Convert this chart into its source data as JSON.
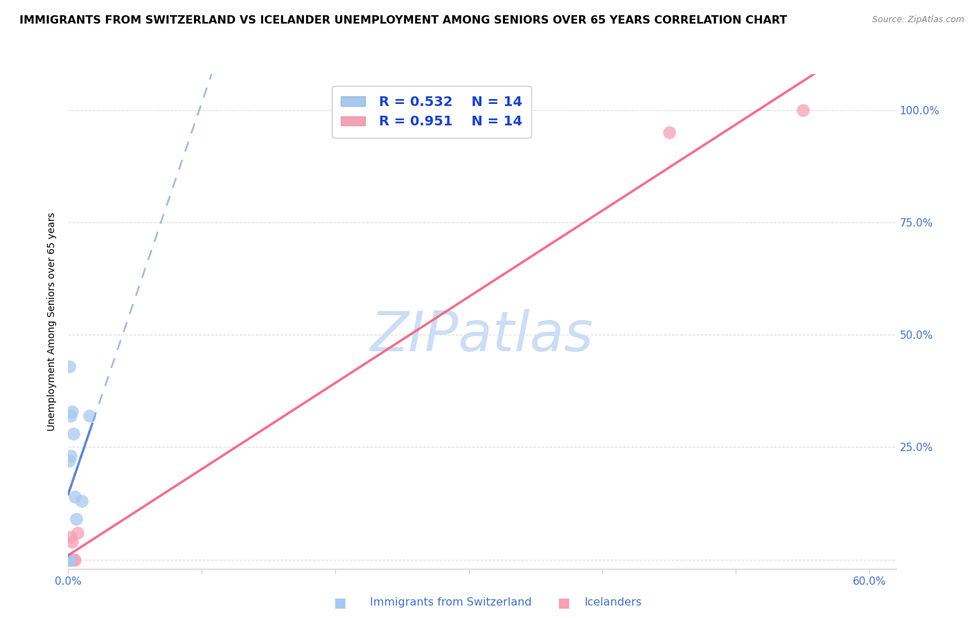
{
  "title": "IMMIGRANTS FROM SWITZERLAND VS ICELANDER UNEMPLOYMENT AMONG SENIORS OVER 65 YEARS CORRELATION CHART",
  "source": "Source: ZipAtlas.com",
  "ylabel_label": "Unemployment Among Seniors over 65 years",
  "legend_label_1": "Immigrants from Switzerland",
  "legend_label_2": "Icelanders",
  "r1": 0.532,
  "n1": 14,
  "r2": 0.951,
  "n2": 14,
  "xlim": [
    0.0,
    0.62
  ],
  "ylim": [
    -0.02,
    1.08
  ],
  "xticks": [
    0.0,
    0.1,
    0.2,
    0.3,
    0.4,
    0.5,
    0.6
  ],
  "yticks": [
    0.0,
    0.25,
    0.5,
    0.75,
    1.0
  ],
  "ytick_labels_right": [
    "",
    "25.0%",
    "50.0%",
    "75.0%",
    "100.0%"
  ],
  "xtick_labels": [
    "0.0%",
    "",
    "",
    "",
    "",
    "",
    "60.0%"
  ],
  "color_blue": "#a8c8f0",
  "color_pink": "#f4a0b5",
  "color_blue_line": "#5580cc",
  "color_pink_line": "#f06080",
  "watermark_color": "#ccddf5",
  "swiss_x": [
    0.0,
    0.0,
    0.001,
    0.001,
    0.001,
    0.001,
    0.002,
    0.002,
    0.003,
    0.004,
    0.005,
    0.006,
    0.01,
    0.016
  ],
  "swiss_y": [
    0.0,
    0.0,
    0.0,
    0.0,
    0.22,
    0.43,
    0.23,
    0.32,
    0.33,
    0.28,
    0.14,
    0.09,
    0.13,
    0.32
  ],
  "icelander_x": [
    0.0,
    0.0,
    0.0,
    0.001,
    0.001,
    0.001,
    0.002,
    0.002,
    0.003,
    0.004,
    0.005,
    0.007,
    0.45,
    0.55
  ],
  "icelander_y": [
    0.0,
    0.0,
    0.0,
    0.0,
    0.0,
    0.0,
    0.0,
    0.05,
    0.04,
    0.0,
    0.0,
    0.06,
    0.95,
    1.0
  ],
  "background_color": "#ffffff",
  "grid_color": "#dddddd",
  "title_fontsize": 11.5,
  "axis_label_fontsize": 10,
  "tick_fontsize": 11
}
